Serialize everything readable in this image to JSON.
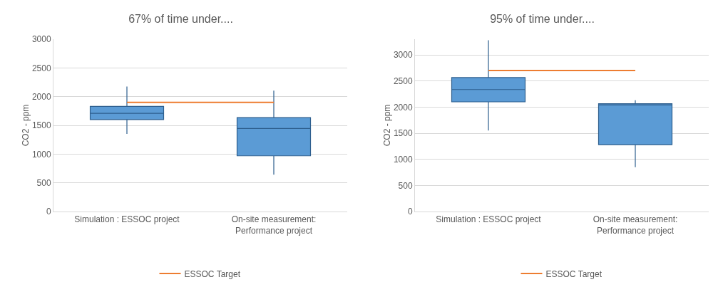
{
  "chart_data": [
    {
      "type": "box",
      "title": "67% of time under....",
      "ylabel": "CO2 - ppm",
      "categories": [
        "Simulation : ESSOC project",
        "On-site measurement: Performance project"
      ],
      "ylim": [
        0,
        3000
      ],
      "yticks": [
        0,
        500,
        1000,
        1500,
        2000,
        2500,
        3000
      ],
      "grid": "y",
      "legend": "bottom",
      "series": [
        {
          "color": "#5b9bd5",
          "boxes": [
            {
              "low": 1350,
              "q1": 1600,
              "median": 1710,
              "q3": 1830,
              "high": 2175
            },
            {
              "low": 640,
              "q1": 970,
              "median": 1445,
              "q3": 1635,
              "high": 2105
            }
          ]
        },
        {
          "type": "line",
          "name": "ESSOC Target",
          "color": "#ed7d31",
          "values": [
            1900,
            1900
          ]
        }
      ]
    },
    {
      "type": "box",
      "title": "95% of time under....",
      "ylabel": "CO2 - ppm",
      "categories": [
        "Simulation : ESSOC project",
        "On-site measurement: Performance project"
      ],
      "ylim": [
        0,
        3300
      ],
      "yticks": [
        0,
        500,
        1000,
        1500,
        2000,
        2500,
        3000
      ],
      "grid": "y",
      "legend": "bottom",
      "series": [
        {
          "color": "#5b9bd5",
          "boxes": [
            {
              "low": 1550,
              "q1": 2100,
              "median": 2335,
              "q3": 2565,
              "high": 3280
            },
            {
              "low": 850,
              "q1": 1280,
              "median": 2040,
              "q3": 2065,
              "high": 2130
            }
          ]
        },
        {
          "type": "line",
          "name": "ESSOC Target",
          "color": "#ed7d31",
          "values": [
            2700,
            2700
          ]
        }
      ]
    }
  ]
}
